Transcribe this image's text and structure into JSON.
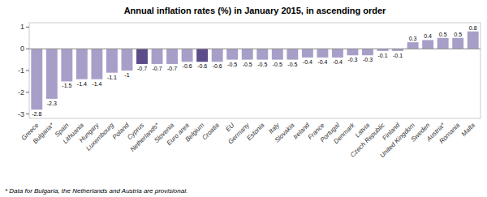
{
  "chart_data": {
    "type": "bar",
    "title": "Annual inflation rates (%) in January 2015, in ascending order",
    "annotations": [
      "* Data for Bulgaria, the Netherlands and Austria are provisional."
    ],
    "categories": [
      "Greece",
      "Bulgaria*",
      "Spain",
      "Lithuania",
      "Hungary",
      "Luxembourg",
      "Poland",
      "Cyprus",
      "Netherlands*",
      "Slovenia",
      "Euro area",
      "Belgium",
      "Croatia",
      "EU",
      "Germany",
      "Estonia",
      "Italy",
      "Slovakia",
      "Ireland",
      "France",
      "Portugal",
      "Denmark",
      "Latvia",
      "Czech Republic",
      "Finland",
      "United Kingdom",
      "Sweden",
      "Austria*",
      "Romania",
      "Malta"
    ],
    "values": [
      -2.8,
      -2.3,
      -1.5,
      -1.4,
      -1.4,
      -1.1,
      -1.0,
      -0.7,
      -0.7,
      -0.7,
      -0.6,
      -0.6,
      -0.6,
      -0.5,
      -0.5,
      -0.5,
      -0.5,
      -0.5,
      -0.4,
      -0.4,
      -0.4,
      -0.3,
      -0.3,
      -0.1,
      -0.1,
      0.3,
      0.4,
      0.5,
      0.5,
      0.8
    ],
    "colors": [
      "#a89fc8",
      "#a89fc8",
      "#a89fc8",
      "#a89fc8",
      "#a89fc8",
      "#a89fc8",
      "#a89fc8",
      "#5c4d8a",
      "#a89fc8",
      "#a89fc8",
      "#a89fc8",
      "#5c4d8a",
      "#a89fc8",
      "#a89fc8",
      "#a89fc8",
      "#a89fc8",
      "#a89fc8",
      "#a89fc8",
      "#a89fc8",
      "#a89fc8",
      "#a89fc8",
      "#a89fc8",
      "#a89fc8",
      "#a89fc8",
      "#a89fc8",
      "#a89fc8",
      "#a89fc8",
      "#a89fc8",
      "#a89fc8",
      "#a89fc8"
    ],
    "ylim": [
      -3.2,
      1.2
    ],
    "yticks": [
      -3,
      -2,
      -1,
      0,
      1
    ],
    "grid": false,
    "data_labels": true
  }
}
